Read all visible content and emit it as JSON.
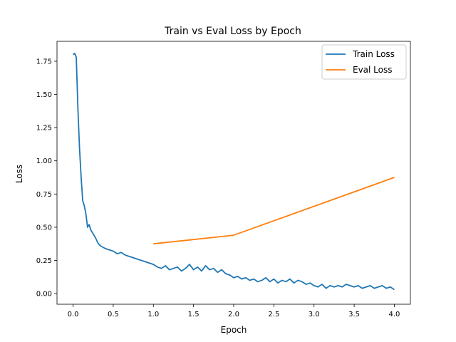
{
  "chart_data": {
    "type": "line",
    "title": "Train vs Eval Loss by Epoch",
    "xlabel": "Epoch",
    "ylabel": "Loss",
    "xlim": [
      -0.2,
      4.2
    ],
    "ylim": [
      -0.08,
      1.9
    ],
    "x_ticks": [
      0.0,
      0.5,
      1.0,
      1.5,
      2.0,
      2.5,
      3.0,
      3.5,
      4.0
    ],
    "x_tick_labels": [
      "0.0",
      "0.5",
      "1.0",
      "1.5",
      "2.0",
      "2.5",
      "3.0",
      "3.5",
      "4.0"
    ],
    "y_ticks": [
      0.0,
      0.25,
      0.5,
      0.75,
      1.0,
      1.25,
      1.5,
      1.75
    ],
    "y_tick_labels": [
      "0.00",
      "0.25",
      "0.50",
      "0.75",
      "1.00",
      "1.25",
      "1.50",
      "1.75"
    ],
    "grid": false,
    "legend": "top-right",
    "series": [
      {
        "name": "Train Loss",
        "color": "#1f77b4",
        "x": [
          0.0,
          0.02,
          0.04,
          0.06,
          0.08,
          0.1,
          0.12,
          0.14,
          0.16,
          0.18,
          0.2,
          0.22,
          0.25,
          0.28,
          0.31,
          0.34,
          0.37,
          0.4,
          0.45,
          0.5,
          0.55,
          0.6,
          0.65,
          0.7,
          0.75,
          0.8,
          0.85,
          0.9,
          0.95,
          1.0,
          1.05,
          1.1,
          1.15,
          1.2,
          1.25,
          1.3,
          1.35,
          1.4,
          1.45,
          1.5,
          1.55,
          1.6,
          1.65,
          1.7,
          1.75,
          1.8,
          1.85,
          1.9,
          1.95,
          2.0,
          2.05,
          2.1,
          2.15,
          2.2,
          2.25,
          2.3,
          2.35,
          2.4,
          2.45,
          2.5,
          2.55,
          2.6,
          2.65,
          2.7,
          2.75,
          2.8,
          2.85,
          2.9,
          2.95,
          3.0,
          3.05,
          3.1,
          3.15,
          3.2,
          3.25,
          3.3,
          3.35,
          3.4,
          3.45,
          3.5,
          3.55,
          3.6,
          3.65,
          3.7,
          3.75,
          3.8,
          3.85,
          3.9,
          3.95,
          4.0
        ],
        "values": [
          1.8,
          1.81,
          1.78,
          1.4,
          1.1,
          0.88,
          0.7,
          0.66,
          0.6,
          0.5,
          0.52,
          0.48,
          0.45,
          0.42,
          0.38,
          0.36,
          0.35,
          0.34,
          0.33,
          0.32,
          0.3,
          0.31,
          0.29,
          0.28,
          0.27,
          0.26,
          0.25,
          0.24,
          0.23,
          0.22,
          0.2,
          0.19,
          0.21,
          0.18,
          0.19,
          0.2,
          0.17,
          0.19,
          0.22,
          0.18,
          0.2,
          0.17,
          0.21,
          0.18,
          0.19,
          0.16,
          0.18,
          0.15,
          0.14,
          0.12,
          0.13,
          0.11,
          0.12,
          0.1,
          0.11,
          0.09,
          0.1,
          0.12,
          0.09,
          0.11,
          0.08,
          0.1,
          0.09,
          0.11,
          0.08,
          0.1,
          0.09,
          0.07,
          0.08,
          0.06,
          0.05,
          0.07,
          0.04,
          0.06,
          0.05,
          0.06,
          0.05,
          0.07,
          0.06,
          0.05,
          0.06,
          0.04,
          0.05,
          0.06,
          0.04,
          0.05,
          0.06,
          0.04,
          0.05,
          0.03
        ]
      },
      {
        "name": "Eval Loss",
        "color": "#ff7f0e",
        "x": [
          1.0,
          2.0,
          4.0
        ],
        "values": [
          0.375,
          0.44,
          0.875
        ]
      }
    ]
  }
}
